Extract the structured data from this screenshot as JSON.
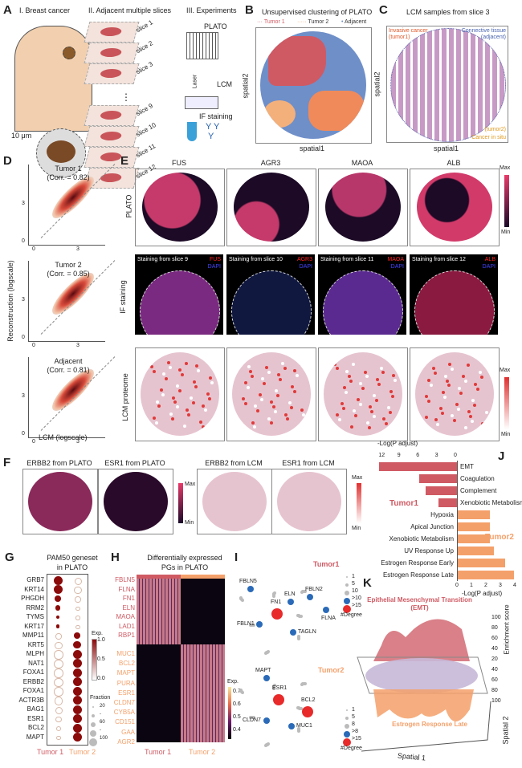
{
  "panelA": {
    "letter": "A",
    "h1": "I. Breast cancer",
    "h2": "II. Adjacent multiple slices",
    "h3": "III. Experiments",
    "scale": "10 μm",
    "slices": [
      "slice 1",
      "slice 2",
      "slice 3",
      "slice 9",
      "slice 10",
      "slice 11",
      "slice 12"
    ],
    "plato": "PLATO",
    "laser": "Laser",
    "lcm": "LCM",
    "if": "IF staining",
    "dots": "⋮"
  },
  "panelB": {
    "letter": "B",
    "title": "Unsupervised clustering of PLATO",
    "legend": [
      "Tumor 1",
      "Tumor 2",
      "Adjacent"
    ],
    "xlabel": "spatial1",
    "ylabel": "spatial2"
  },
  "panelC": {
    "letter": "C",
    "title": "LCM samples from slice 3",
    "inv1": "Invasive cancer",
    "inv2": "(tumor1)",
    "con1": "Connective tissue",
    "con2": "(adjacent)",
    "cis1": "(tumor2)",
    "cis2": "Cancer in situ",
    "xlabel": "spatial1",
    "ylabel": "spatial2"
  },
  "panelD": {
    "letter": "D",
    "plots": [
      {
        "name": "Tumor 1",
        "corr": "(Corr. = 0.82)"
      },
      {
        "name": "Tumor 2",
        "corr": "(Corr. = 0.85)"
      },
      {
        "name": "Adjacent",
        "corr": "(Corr. = 0.81)"
      }
    ],
    "ticks": [
      "0",
      "3"
    ],
    "xlabel": "LCM (logscale)",
    "ylabel": "Reconstruction (logscale)"
  },
  "panelE": {
    "letter": "E",
    "genes": [
      "FUS",
      "AGR3",
      "MAOA",
      "ALB"
    ],
    "rows": [
      "PLATO",
      "IF staining",
      "LCM proteome"
    ],
    "staining": [
      "Staining from slice 9",
      "Staining from slice 10",
      "Staining from slice 11",
      "Staining from slice 12"
    ],
    "dapi": "DAPI",
    "max": "Max",
    "min": "Min"
  },
  "panelF": {
    "letter": "F",
    "titles": [
      "ERBB2 from PLATO",
      "ESR1 from PLATO",
      "ERBB2 from LCM",
      "ESR1 from LCM"
    ],
    "max": "Max",
    "min": "Min"
  },
  "panelG": {
    "letter": "G",
    "title1": "PAM50 geneset",
    "title2": "in PLATO",
    "groups": [
      "Tumor 1",
      "Tumor 2"
    ],
    "genes": [
      "GRB7",
      "KRT14",
      "PHGDH",
      "RRM2",
      "TYMS",
      "KRT17",
      "MMP11",
      "KRT5",
      "MLPH",
      "NAT1",
      "FOXA1",
      "ERBB2",
      "FOXA1",
      "ACTR3B",
      "BAG1",
      "ESR1",
      "BCL2",
      "MAPT"
    ],
    "t1_exp": [
      1,
      1,
      0.9,
      0.9,
      0.9,
      0.7,
      0.05,
      0.05,
      0.03,
      0.03,
      0.03,
      0.03,
      0.03,
      0.05,
      0.05,
      0.05,
      0.1,
      0.1
    ],
    "t1_frac": [
      100,
      100,
      60,
      40,
      20,
      20,
      30,
      60,
      80,
      80,
      80,
      80,
      80,
      70,
      50,
      30,
      20,
      10
    ],
    "t2_exp": [
      0.05,
      0.05,
      0.1,
      0.1,
      0.1,
      0.1,
      0.9,
      1,
      1,
      1,
      1,
      1,
      1,
      1,
      1,
      1,
      1,
      1
    ],
    "t2_frac": [
      50,
      60,
      30,
      10,
      5,
      5,
      60,
      80,
      100,
      100,
      100,
      100,
      100,
      100,
      100,
      100,
      100,
      100
    ],
    "exp_label": "Exp.",
    "exp_ticks": [
      "1.0",
      "0.5",
      "0.0"
    ],
    "frac_label": "Fraction",
    "frac_ticks": [
      "20",
      "-",
      "60",
      "-",
      "100"
    ]
  },
  "panelH": {
    "letter": "H",
    "title1": "Differentially expressed",
    "title2": "PGs in PLATO",
    "groups": [
      "Tumor 1",
      "Tumor 2"
    ],
    "t1_genes": [
      "FBLN5",
      "FLNA",
      "FN1",
      "ELN",
      "MAOA",
      "LAD1",
      "RBP1"
    ],
    "t2_genes": [
      "MUC1",
      "BCL2",
      "MAPT",
      "PURA",
      "ESR1",
      "CLDN7",
      "CYB5A",
      "CD151",
      "GAA",
      "AGR2"
    ],
    "exp_label": "Exp.",
    "exp_ticks": [
      "0.7",
      "0.6",
      "0.5",
      "0.4"
    ]
  },
  "panelI": {
    "letter": "I",
    "t1": "Tumor1",
    "t2": "Tumor2",
    "t1_nodes": [
      {
        "n": "FN1",
        "c": "red"
      },
      {
        "n": "FBLN5",
        "c": "blue"
      },
      {
        "n": "ELN",
        "c": "blue"
      },
      {
        "n": "FBLN2",
        "c": "blue"
      },
      {
        "n": "FLNA",
        "c": "blue"
      },
      {
        "n": "FBLN1",
        "c": "blue"
      },
      {
        "n": "TAGLN",
        "c": "blue"
      }
    ],
    "t2_nodes": [
      {
        "n": "ESR1",
        "c": "red"
      },
      {
        "n": "BCL2",
        "c": "red"
      },
      {
        "n": "MAPT",
        "c": "blue"
      },
      {
        "n": "CLDN7",
        "c": "blue"
      },
      {
        "n": "MUC1",
        "c": "blue"
      }
    ],
    "legend1": [
      "1",
      "5",
      "10",
      ">10",
      ">15"
    ],
    "legend2": [
      "1",
      "5",
      "8",
      ">8",
      ">15"
    ],
    "degree": "#Degree"
  },
  "panelJ": {
    "letter": "J",
    "top_axis": "-Log(P adjust)",
    "bottom_axis": "-Log(P adjust)",
    "top_ticks": [
      "12",
      "9",
      "6",
      "3",
      "0"
    ],
    "bottom_ticks": [
      "0",
      "1",
      "2",
      "3",
      "4"
    ],
    "t1_label": "Tumor1",
    "t2_label": "Tumor2",
    "t1": [
      {
        "term": "EMT",
        "v": 12.5
      },
      {
        "term": "Coagulation",
        "v": 6
      },
      {
        "term": "Complement",
        "v": 5
      },
      {
        "term": "Xenobiotic Metabolism",
        "v": 3
      }
    ],
    "t2": [
      {
        "term": "Hypoxia",
        "v": 2.2
      },
      {
        "term": "Apical Junction",
        "v": 2.2
      },
      {
        "term": "Xenobiotic Metabolism",
        "v": 2.2
      },
      {
        "term": "UV Response Up",
        "v": 2.5
      },
      {
        "term": "Estrogen Response Early",
        "v": 3.3
      },
      {
        "term": "Estrogen Response Late",
        "v": 3.9
      }
    ]
  },
  "panelK": {
    "letter": "K",
    "top1": "Epithelial Mesenchymal Transition",
    "top2": "(EMT)",
    "bottom": "Estrogen Response Late",
    "z_ticks": [
      "100",
      "80",
      "60",
      "40",
      "20",
      "40",
      "60",
      "80",
      "100"
    ],
    "zlabel": "Enrichment score",
    "x": "Spatial 1",
    "y": "Spatial 2"
  },
  "colors": {
    "tumor1": "#cf5a63",
    "tumor2": "#f4a06a",
    "adjacent": "#6f8fc9",
    "dark": "#8b0a0a"
  }
}
